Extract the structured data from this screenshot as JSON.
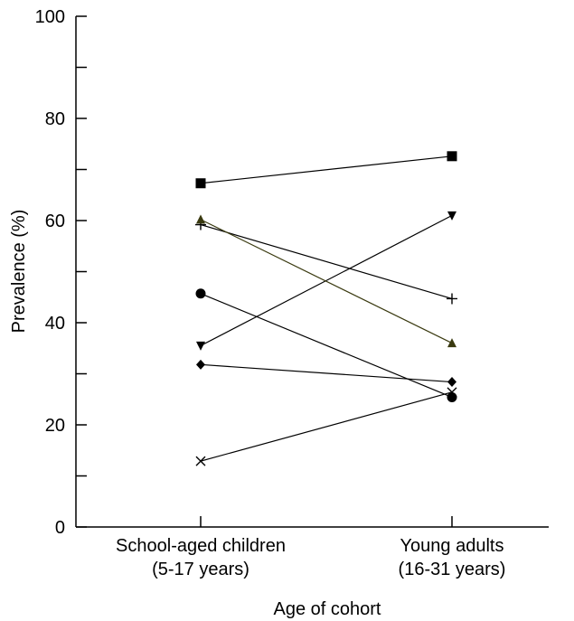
{
  "chart_data": {
    "type": "line",
    "xlabel": "Age of cohort",
    "ylabel": "Prevalence (%)",
    "ylim": [
      0,
      100
    ],
    "yticks": [
      0,
      20,
      40,
      60,
      80,
      100
    ],
    "yminor_step": 10,
    "grid": false,
    "categories": [
      {
        "line1": "School-aged children",
        "line2": "(5-17 years)"
      },
      {
        "line1": "Young adults",
        "line2": "(16-31 years)"
      }
    ],
    "series": [
      {
        "marker": "square",
        "color": "#000000",
        "values": [
          67.3,
          72.6
        ]
      },
      {
        "marker": "triangle-down",
        "color": "#000000",
        "values": [
          35.5,
          61.0
        ]
      },
      {
        "marker": "plus",
        "color": "#000000",
        "values": [
          59.2,
          44.7
        ]
      },
      {
        "marker": "triangle-up",
        "color": "#3a3a10",
        "values": [
          60.2,
          36.0
        ]
      },
      {
        "marker": "circle",
        "color": "#000000",
        "values": [
          45.7,
          25.4
        ]
      },
      {
        "marker": "diamond",
        "color": "#000000",
        "values": [
          31.8,
          28.4
        ]
      },
      {
        "marker": "x",
        "color": "#000000",
        "values": [
          12.9,
          26.4
        ]
      }
    ]
  }
}
